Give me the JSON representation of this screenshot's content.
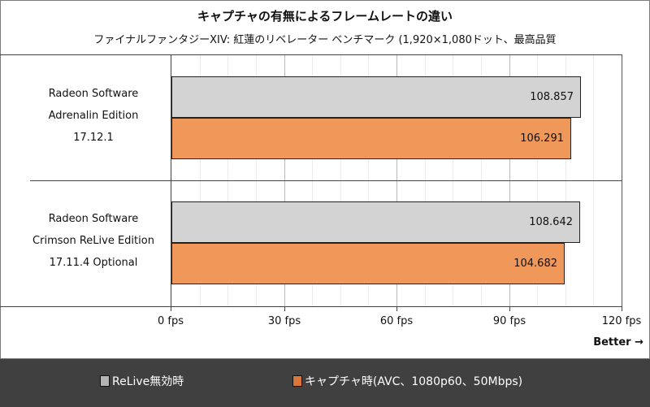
{
  "chart_data": {
    "type": "bar",
    "orientation": "horizontal",
    "title": "キャプチャの有無によるフレームレートの違い",
    "subtitle": "ファイナルファンタジーXIV: 紅蓮のリベレーター ベンチマーク (1,920×1,080ドット、最高品質",
    "categories": [
      [
        "Radeon Software",
        "Adrenalin Edition",
        "17.12.1"
      ],
      [
        "Radeon Software",
        "Crimson ReLive Edition",
        "17.11.4 Optional"
      ]
    ],
    "series": [
      {
        "name": "ReLive無効時",
        "color": "#d3d3d3",
        "values": [
          108.857,
          108.642
        ],
        "labels": [
          "108.857",
          "108.642"
        ]
      },
      {
        "name": "キャプチャ時(AVC、1080p60、50Mbps)",
        "color": "#f0975a",
        "values": [
          106.291,
          104.682
        ],
        "labels": [
          "106.291",
          "104.682"
        ]
      }
    ],
    "xlabel": "",
    "ylabel": "",
    "xlim": [
      0,
      120
    ],
    "x_ticks": [
      "0 fps",
      "30 fps",
      "60 fps",
      "90 fps",
      "120 fps"
    ],
    "x_tick_values": [
      0,
      30,
      60,
      90,
      120
    ],
    "minor_grid_step": 7.5,
    "grid": true,
    "annotation": "Better →",
    "legend_position": "bottom"
  },
  "legend": {
    "items": [
      {
        "label": "ReLive無効時",
        "swatch_color": "#b4b4b4"
      },
      {
        "label": "キャプチャ時(AVC、1080p60、50Mbps)",
        "swatch_color": "#d9773a"
      }
    ]
  }
}
